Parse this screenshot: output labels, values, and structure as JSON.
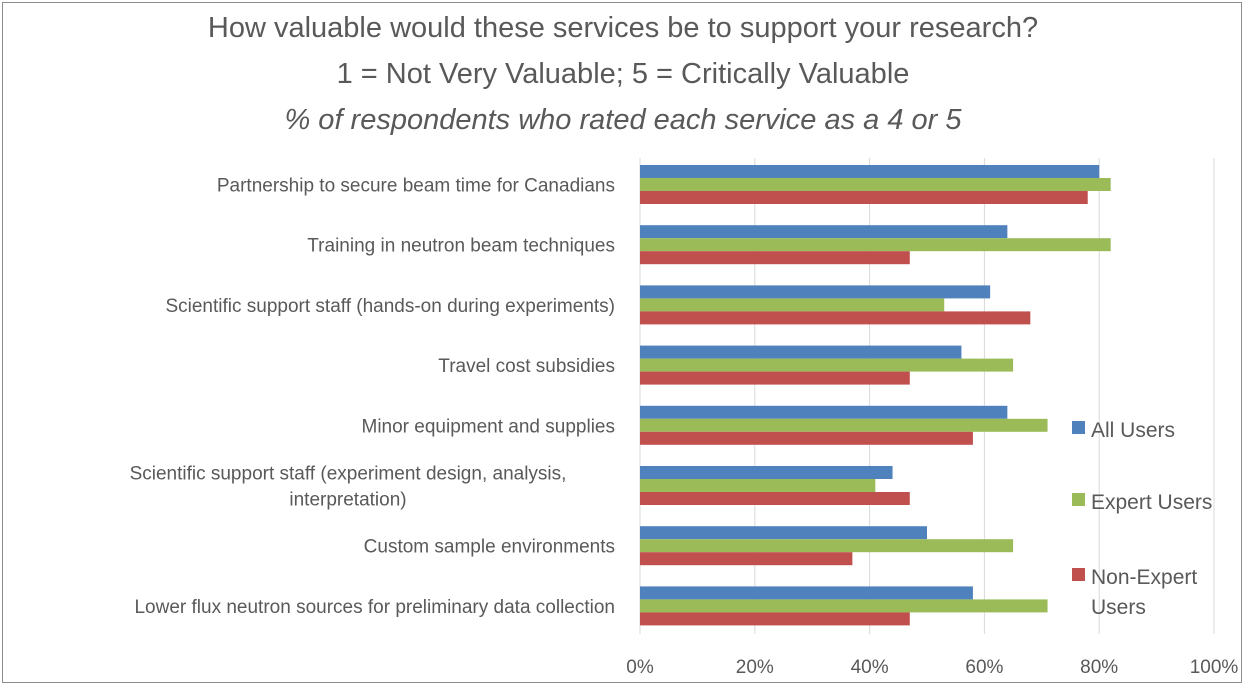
{
  "chart_data": {
    "type": "bar",
    "orientation": "horizontal",
    "title": "How valuable would these services be to support your research?",
    "subtitle": "1 = Not Very Valuable; 5 = Critically Valuable",
    "subtitle2": "% of respondents who rated each service as a 4 or 5",
    "xlim": [
      0,
      100
    ],
    "x_ticks": [
      "0%",
      "20%",
      "40%",
      "60%",
      "80%",
      "100%"
    ],
    "grid": true,
    "legend_position": "right",
    "categories": [
      "Partnership to secure beam time for Canadians",
      "Training in neutron beam techniques",
      "Scientific support staff (hands-on during experiments)",
      "Travel cost subsidies",
      "Minor equipment and supplies",
      "Scientific support staff (experiment design, analysis, interpretation)",
      "Custom sample environments",
      "Lower flux neutron sources for preliminary data collection"
    ],
    "category_lines": [
      [
        "Partnership to secure beam time for Canadians"
      ],
      [
        "Training in neutron beam techniques"
      ],
      [
        "Scientific support staff (hands-on during experiments)"
      ],
      [
        "Travel cost subsidies"
      ],
      [
        "Minor equipment and supplies"
      ],
      [
        "Scientific support staff (experiment design, analysis,",
        "interpretation)"
      ],
      [
        "Custom sample environments"
      ],
      [
        "Lower flux neutron sources for preliminary data collection"
      ]
    ],
    "series": [
      {
        "name": "All Users",
        "color": "#4F81BD",
        "values": [
          80,
          64,
          61,
          56,
          64,
          44,
          50,
          58
        ]
      },
      {
        "name": "Expert Users",
        "color": "#9BBB59",
        "values": [
          82,
          82,
          53,
          65,
          71,
          41,
          65,
          71
        ]
      },
      {
        "name": "Non-Expert Users",
        "color": "#C0504D",
        "values": [
          78,
          47,
          68,
          47,
          58,
          47,
          37,
          47
        ]
      }
    ],
    "legend_lines": [
      [
        "All Users"
      ],
      [
        "Expert Users"
      ],
      [
        "Non-Expert",
        "Users"
      ]
    ]
  }
}
